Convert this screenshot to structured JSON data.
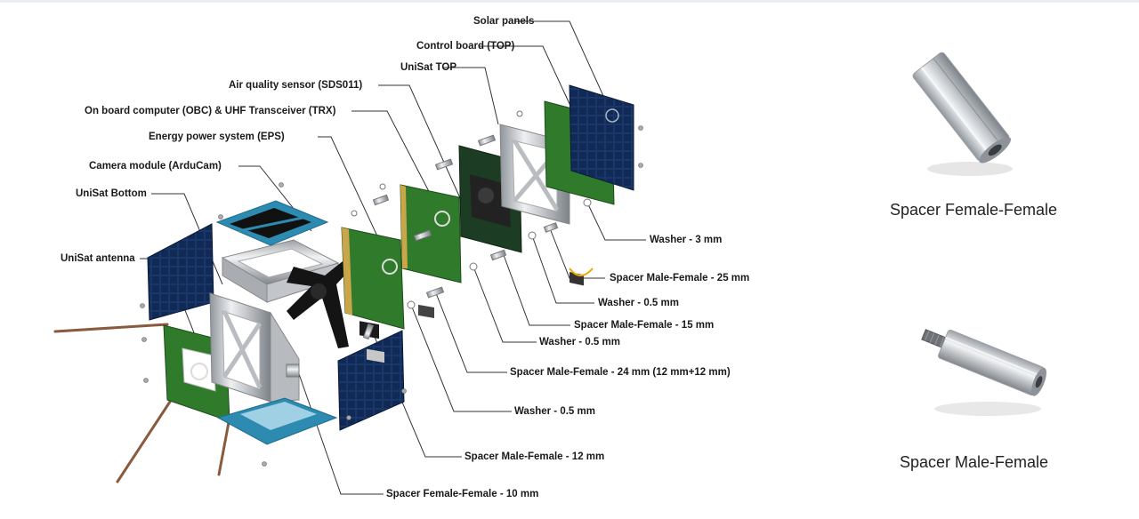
{
  "callouts": {
    "solar_panels": "Solar panels",
    "control_board_top": "Control board (TOP)",
    "unisat_top": "UniSat TOP",
    "air_quality_sensor": "Air quality sensor (SDS011)",
    "obc_trx": "On board computer (OBC) & UHF Transceiver (TRX)",
    "eps": "Energy power system (EPS)",
    "camera_module": "Camera module (ArduCam)",
    "unisat_bottom": "UniSat Bottom",
    "unisat_antenna": "UniSat antenna",
    "washer_3mm": "Washer - 3 mm",
    "spacer_mf_25": "Spacer Male-Female - 25 mm",
    "washer_05_a": "Washer - 0.5 mm",
    "spacer_mf_15": "Spacer Male-Female - 15 mm",
    "washer_05_b": "Washer - 0.5 mm",
    "spacer_mf_24": "Spacer Male-Female - 24 mm (12 mm+12 mm)",
    "washer_05_c": "Washer - 0.5 mm",
    "spacer_mf_12": "Spacer Male-Female - 12 mm",
    "spacer_ff_10": "Spacer Female-Female - 10 mm"
  },
  "photos": {
    "spacer_ff_caption": "Spacer Female-Female",
    "spacer_mf_caption": "Spacer Male-Female"
  },
  "colors": {
    "pcb_green": "#2f7a2b",
    "solar_blue": "#12294f",
    "frame_silver": "#c7c9cc",
    "leader": "#333333",
    "accent_arc": "#f0a800"
  }
}
